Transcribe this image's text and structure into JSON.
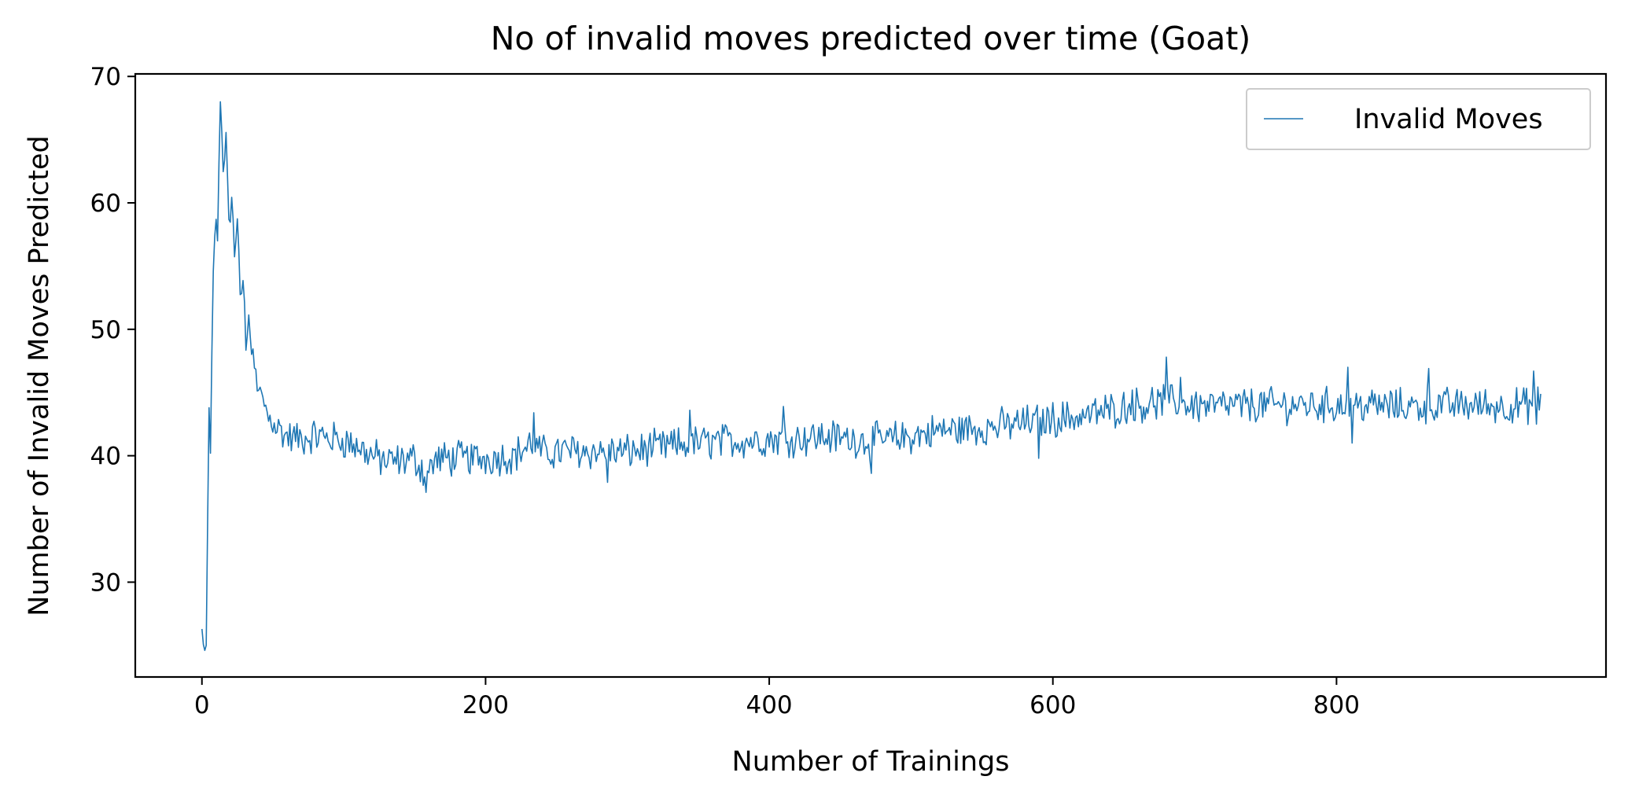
{
  "chart_data": {
    "type": "line",
    "title": "No of invalid moves predicted over time (Goat)",
    "xlabel": "Number of Trainings",
    "ylabel": "Number of Invalid Moves Predicted",
    "xlim": [
      -47,
      990
    ],
    "ylim": [
      22.5,
      70.2
    ],
    "xticks": [
      0,
      200,
      400,
      600,
      800
    ],
    "yticks": [
      30,
      40,
      50,
      60,
      70
    ],
    "grid": false,
    "legend_position": "top-right",
    "line_color": "#1f77b4",
    "series": [
      {
        "name": "Invalid Moves",
        "x_range": [
          0,
          944
        ],
        "noise_amplitude": 1.2,
        "keypoints": [
          [
            0,
            26.3
          ],
          [
            2,
            24.6
          ],
          [
            3,
            25.0
          ],
          [
            5,
            43.8
          ],
          [
            6,
            40.2
          ],
          [
            8,
            54.6
          ],
          [
            10,
            58.7
          ],
          [
            11,
            57.0
          ],
          [
            13,
            68.0
          ],
          [
            15,
            63.0
          ],
          [
            17,
            65.0
          ],
          [
            19,
            58.0
          ],
          [
            21,
            60.5
          ],
          [
            23,
            56.0
          ],
          [
            25,
            59.0
          ],
          [
            27,
            52.0
          ],
          [
            29,
            54.0
          ],
          [
            31,
            49.0
          ],
          [
            33,
            51.5
          ],
          [
            35,
            48.0
          ],
          [
            37,
            47.0
          ],
          [
            40,
            45.0
          ],
          [
            43,
            44.5
          ],
          [
            46,
            43.2
          ],
          [
            50,
            42.8
          ],
          [
            55,
            42.0
          ],
          [
            60,
            41.5
          ],
          [
            70,
            41.3
          ],
          [
            80,
            41.6
          ],
          [
            90,
            41.4
          ],
          [
            100,
            41.2
          ],
          [
            110,
            40.7
          ],
          [
            120,
            40.0
          ],
          [
            130,
            39.5
          ],
          [
            140,
            39.6
          ],
          [
            150,
            39.8
          ],
          [
            158,
            38.5
          ],
          [
            165,
            39.7
          ],
          [
            180,
            39.8
          ],
          [
            200,
            39.8
          ],
          [
            220,
            40.0
          ],
          [
            233,
            41.0
          ],
          [
            240,
            40.2
          ],
          [
            260,
            40.4
          ],
          [
            280,
            40.3
          ],
          [
            300,
            40.3
          ],
          [
            320,
            40.6
          ],
          [
            340,
            40.9
          ],
          [
            360,
            41.1
          ],
          [
            380,
            41.2
          ],
          [
            400,
            41.3
          ],
          [
            420,
            41.4
          ],
          [
            440,
            41.5
          ],
          [
            460,
            41.3
          ],
          [
            480,
            41.2
          ],
          [
            500,
            41.5
          ],
          [
            520,
            42.0
          ],
          [
            540,
            42.1
          ],
          [
            560,
            42.3
          ],
          [
            580,
            42.6
          ],
          [
            600,
            42.9
          ],
          [
            620,
            43.1
          ],
          [
            640,
            43.6
          ],
          [
            660,
            44.0
          ],
          [
            680,
            44.3
          ],
          [
            700,
            44.0
          ],
          [
            720,
            43.9
          ],
          [
            740,
            44.0
          ],
          [
            760,
            44.0
          ],
          [
            780,
            44.0
          ],
          [
            800,
            44.0
          ],
          [
            820,
            44.0
          ],
          [
            840,
            43.9
          ],
          [
            860,
            43.9
          ],
          [
            880,
            44.0
          ],
          [
            900,
            44.0
          ],
          [
            920,
            43.9
          ],
          [
            935,
            44.0
          ],
          [
            944,
            44.2
          ]
        ],
        "spikes": [
          [
            234,
            43.4
          ],
          [
            158,
            37.1
          ],
          [
            344,
            43.6
          ],
          [
            410,
            43.9
          ],
          [
            680,
            47.8
          ],
          [
            690,
            46.2
          ],
          [
            808,
            47.0
          ],
          [
            811,
            41.0
          ],
          [
            865,
            46.9
          ],
          [
            939,
            46.7
          ],
          [
            941,
            42.5
          ],
          [
            656,
            45.2
          ],
          [
            590,
            39.8
          ],
          [
            472,
            38.6
          ],
          [
            286,
            37.9
          ]
        ]
      }
    ]
  }
}
